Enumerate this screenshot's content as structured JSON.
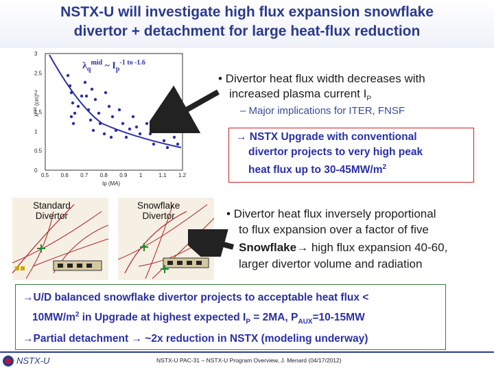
{
  "title": {
    "line1": "NSTX-U will investigate high flux expansion snowflake",
    "line2": "divertor + detachment for large heat-flux reduction"
  },
  "plot": {
    "equation_lambda": "λ",
    "equation_q": "q",
    "equation_mid": "mid",
    "equation_tilde": "~ I",
    "equation_p": "p",
    "equation_exp": "-1 to -1.6",
    "ylabel": "λ_q^mid (cm)",
    "xlabel": "Ip (MA)",
    "x_ticks": [
      "0.5",
      "0.6",
      "0.7",
      "0.8",
      "0.9",
      "1",
      "1.1",
      "1.2"
    ],
    "y_ticks": [
      "0",
      "0.5",
      "1",
      "1.5",
      "2",
      "2.5",
      "3"
    ]
  },
  "bullets": {
    "b1_line1": "• Divertor heat flux width decreases with",
    "b1_line2": "increased plasma current I",
    "b1_sub_p": "P",
    "b1_sub": "– Major implications for ITER, FNSF",
    "redbox_line1": "→ NSTX Upgrade with conventional",
    "redbox_line2": "divertor projects to very high peak",
    "redbox_line3": "heat flux up to 30-45MW/m",
    "redbox_sup": "2",
    "b2_line1": "• Divertor heat flux inversely proportional",
    "b2_line2": "to flux expansion over a factor of five",
    "b2_line3a": "Snowflake",
    "b2_line3b": "→ high flux expansion 40-60,",
    "b2_line4": "larger divertor volume and radiation"
  },
  "divertors": {
    "standard_line1": "Standard",
    "standard_line2": "Divertor",
    "snowflake_line1": "Snowflake",
    "snowflake_line2": "Divertor"
  },
  "bottom_box": {
    "line1": "→U/D balanced snowflake divertor projects to acceptable heat flux <",
    "line2a": "10MW/m",
    "line2sup": "2",
    "line2b": " in Upgrade at highest expected I",
    "line2sub": "P",
    "line2c": " = 2MA, P",
    "line2sub2": "AUX",
    "line2d": "=10-15MW",
    "line3": "→Partial detachment → ~2x reduction in NSTX (modeling underway)"
  },
  "footer": {
    "logo": "NSTX-U",
    "text": "NSTX-U PAC-31 – NSTX-U Program Overview, J. Menard (04/17/2012)"
  },
  "colors": {
    "title": "#2a3a8c",
    "accent_blue": "#2a2fa6",
    "red_border": "#cc2020",
    "green_border": "#3a7a3a"
  }
}
